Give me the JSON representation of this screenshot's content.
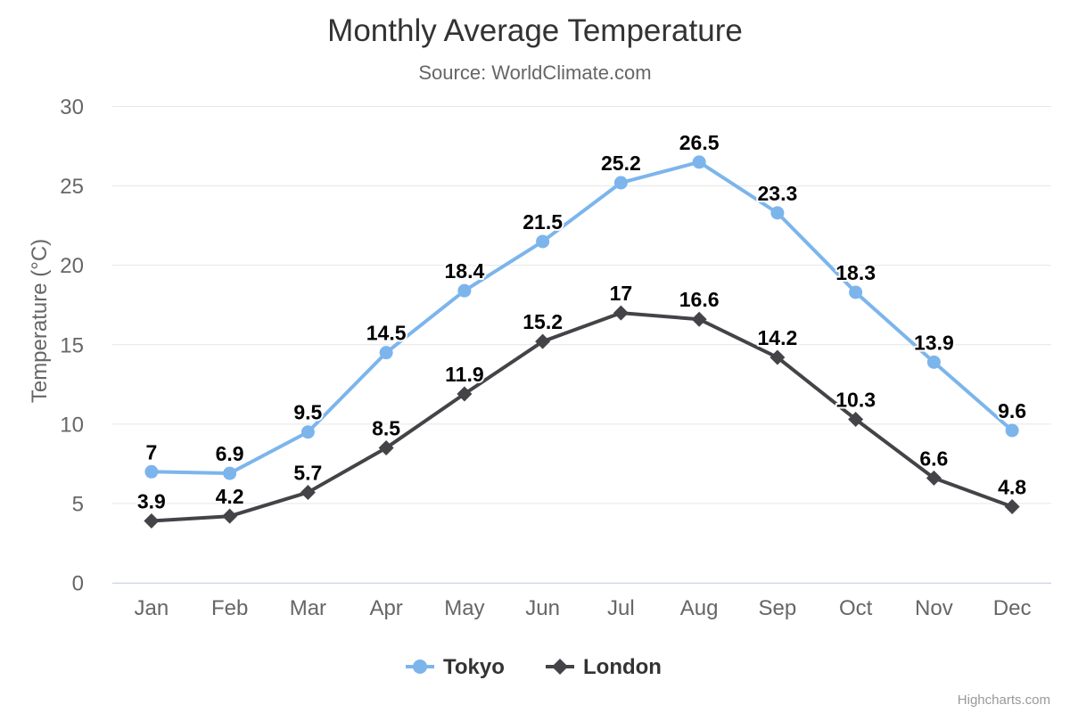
{
  "chart_data": {
    "type": "line",
    "title": "Monthly Average Temperature",
    "subtitle": "Source: WorldClimate.com",
    "xlabel": "",
    "ylabel": "Temperature (°C)",
    "categories": [
      "Jan",
      "Feb",
      "Mar",
      "Apr",
      "May",
      "Jun",
      "Jul",
      "Aug",
      "Sep",
      "Oct",
      "Nov",
      "Dec"
    ],
    "ylim": [
      0,
      30
    ],
    "yticks": [
      0,
      5,
      10,
      15,
      20,
      25,
      30
    ],
    "grid": true,
    "legend_position": "bottom",
    "data_labels": true,
    "series": [
      {
        "name": "Tokyo",
        "color": "#7cb5ec",
        "marker": "circle",
        "values": [
          7,
          6.9,
          9.5,
          14.5,
          18.4,
          21.5,
          25.2,
          26.5,
          23.3,
          18.3,
          13.9,
          9.6
        ]
      },
      {
        "name": "London",
        "color": "#434348",
        "marker": "diamond",
        "values": [
          3.9,
          4.2,
          5.7,
          8.5,
          11.9,
          15.2,
          17,
          16.6,
          14.2,
          10.3,
          6.6,
          4.8
        ]
      }
    ]
  },
  "credits": {
    "label": "Highcharts.com"
  },
  "colors": {
    "background": "#ffffff",
    "grid": "#e6e6e6",
    "axis_line": "#ccd6eb",
    "axis_label": "#666666",
    "title": "#333333",
    "subtitle": "#666666",
    "data_label": "#000000",
    "legend_label": "#333333",
    "credits": "#999999"
  }
}
